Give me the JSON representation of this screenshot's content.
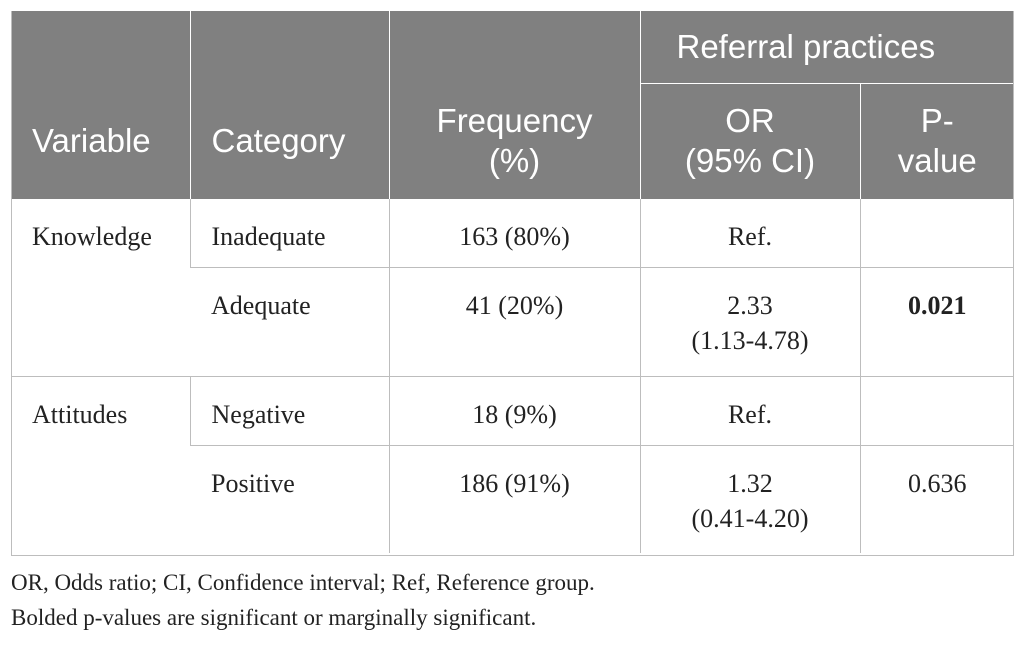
{
  "table": {
    "group_header": "Referral practices",
    "columns": [
      "Variable",
      "Category",
      "Frequency (%)",
      "OR (95% CI)",
      "P-value"
    ],
    "col_variable": "Variable",
    "col_category": "Category",
    "col_frequency_1": "Frequency",
    "col_frequency_2": "(%)",
    "col_or_1": "OR",
    "col_or_2": "(95% CI)",
    "col_p_1": "P-",
    "col_p_2": "value",
    "rows": [
      {
        "variable": "Knowledge",
        "category": "Inadequate",
        "frequency": "163 (80%)",
        "or_1": "Ref.",
        "or_2": "",
        "p": ""
      },
      {
        "variable": "",
        "category": "Adequate",
        "frequency": "41 (20%)",
        "or_1": "2.33",
        "or_2": "(1.13-4.78)",
        "p": "0.021",
        "p_bold": true
      },
      {
        "variable": "Attitudes",
        "category": "Negative",
        "frequency": "18 (9%)",
        "or_1": "Ref.",
        "or_2": "",
        "p": ""
      },
      {
        "variable": "",
        "category": "Positive",
        "frequency": "186 (91%)",
        "or_1": "1.32",
        "or_2": "(0.41-4.20)",
        "p": "0.636",
        "p_bold": false
      }
    ]
  },
  "footnotes": [
    "OR, Odds ratio; CI, Confidence interval; Ref, Reference group.",
    "Bolded p-values are significant or marginally significant."
  ],
  "colors": {
    "header_bg": "#808080",
    "header_text": "#ffffff",
    "rule": "#bdbdbd",
    "body_text": "#222222"
  }
}
